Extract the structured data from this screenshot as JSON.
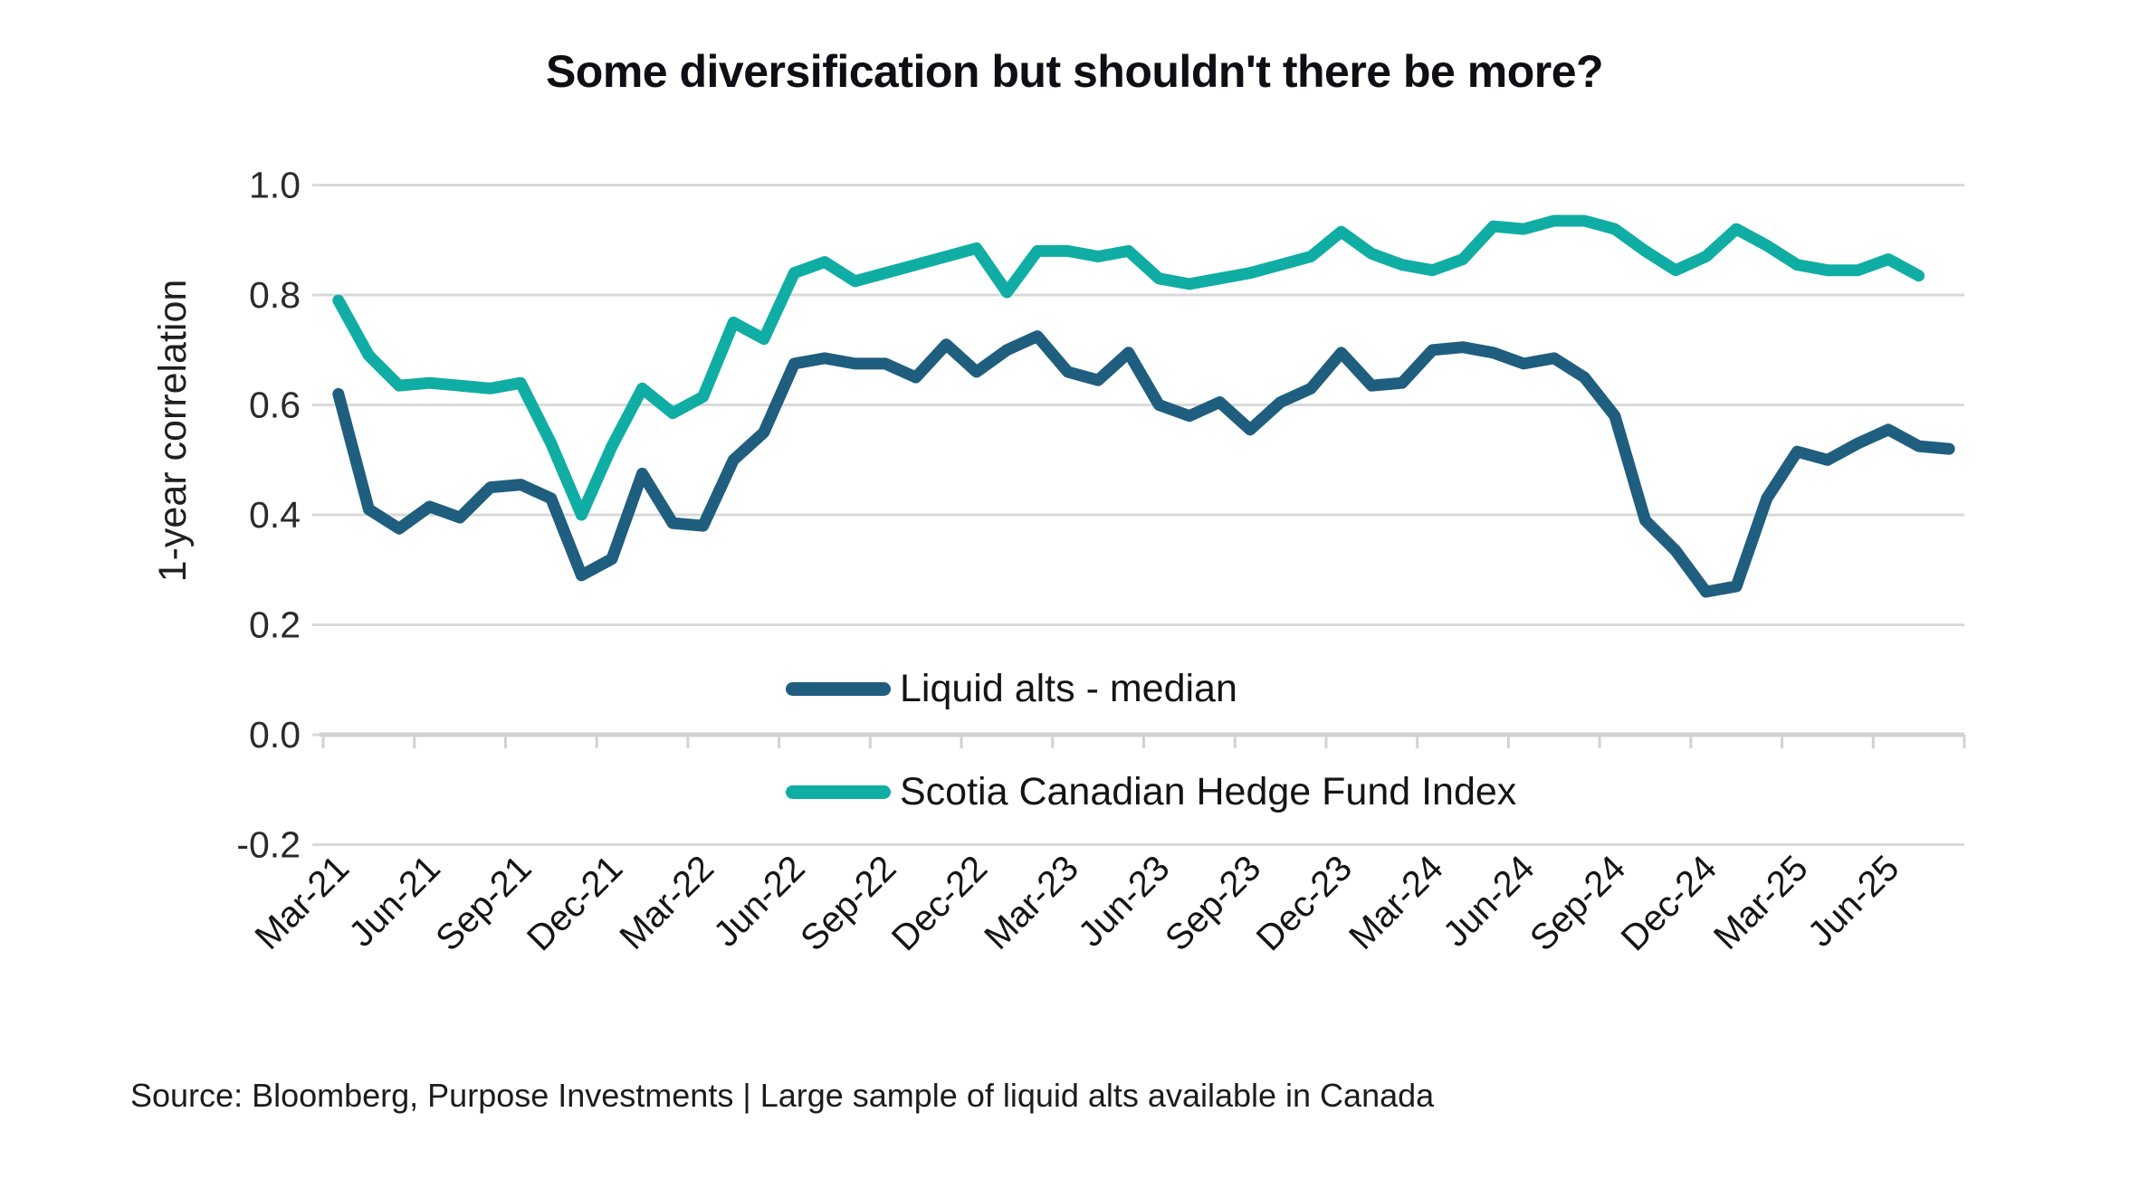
{
  "title": "Some diversification but shouldn't there be more?",
  "source": "Source: Bloomberg, Purpose Investments | Large sample of liquid alts available in Canada",
  "colors": {
    "liquid_alts_line": "#1f5e7e",
    "scotia_line": "#10ada4",
    "gridline": "#d9d9d9",
    "axis_line": "#d2d2d2",
    "title_text": "#0e0e14",
    "tick_text": "#2b2b2b"
  },
  "chart_data": {
    "type": "line",
    "title": "Some diversification but shouldn't there be more?",
    "xlabel": "",
    "ylabel": "1-year correlation",
    "ylim": [
      -0.2,
      1.0
    ],
    "grid": true,
    "legend_position": "inside-bottom-center",
    "x": [
      "Mar-21",
      "Apr-21",
      "May-21",
      "Jun-21",
      "Jul-21",
      "Aug-21",
      "Sep-21",
      "Oct-21",
      "Nov-21",
      "Dec-21",
      "Jan-22",
      "Feb-22",
      "Mar-22",
      "Apr-22",
      "May-22",
      "Jun-22",
      "Jul-22",
      "Aug-22",
      "Sep-22",
      "Oct-22",
      "Nov-22",
      "Dec-22",
      "Jan-23",
      "Feb-23",
      "Mar-23",
      "Apr-23",
      "May-23",
      "Jun-23",
      "Jul-23",
      "Aug-23",
      "Sep-23",
      "Oct-23",
      "Nov-23",
      "Dec-23",
      "Jan-24",
      "Feb-24",
      "Mar-24",
      "Apr-24",
      "May-24",
      "Jun-24",
      "Jul-24",
      "Aug-24",
      "Sep-24",
      "Oct-24",
      "Nov-24",
      "Dec-24",
      "Jan-25",
      "Feb-25",
      "Mar-25",
      "Apr-25",
      "May-25",
      "Jun-25",
      "Jul-25",
      "Aug-25"
    ],
    "x_tick_labels": [
      "Mar-21",
      "Jun-21",
      "Sep-21",
      "Dec-21",
      "Mar-22",
      "Jun-22",
      "Sep-22",
      "Dec-22",
      "Mar-23",
      "Jun-23",
      "Sep-23",
      "Dec-23",
      "Mar-24",
      "Jun-24",
      "Sep-24",
      "Dec-24",
      "Mar-25",
      "Jun-25"
    ],
    "yticks": [
      {
        "label": "1.0",
        "value": 1.0
      },
      {
        "label": "0.8",
        "value": 0.8
      },
      {
        "label": "0.6",
        "value": 0.6
      },
      {
        "label": "0.4",
        "value": 0.4
      },
      {
        "label": "0.2",
        "value": 0.2
      },
      {
        "label": "0.0",
        "value": 0.0
      },
      {
        "label": "-0.2",
        "value": -0.2
      }
    ],
    "series": [
      {
        "name": "Liquid alts - median",
        "color": "#1f5e7e",
        "values": [
          0.62,
          0.41,
          0.375,
          0.415,
          0.395,
          0.45,
          0.455,
          0.43,
          0.29,
          0.32,
          0.475,
          0.385,
          0.38,
          0.5,
          0.55,
          0.675,
          0.685,
          0.675,
          0.675,
          0.65,
          0.71,
          0.66,
          0.7,
          0.725,
          0.66,
          0.645,
          0.695,
          0.6,
          0.58,
          0.605,
          0.555,
          0.605,
          0.63,
          0.695,
          0.635,
          0.64,
          0.7,
          0.705,
          0.695,
          0.675,
          0.685,
          0.65,
          0.58,
          0.39,
          0.335,
          0.26,
          0.27,
          0.43,
          0.515,
          0.5,
          0.53,
          0.555,
          0.525,
          0.52
        ]
      },
      {
        "name": "Scotia Canadian Hedge Fund Index",
        "color": "#10ada4",
        "values": [
          0.79,
          0.69,
          0.635,
          0.64,
          0.635,
          0.63,
          0.64,
          0.53,
          0.4,
          0.525,
          0.63,
          0.585,
          0.615,
          0.75,
          0.72,
          0.84,
          0.86,
          0.825,
          0.84,
          0.855,
          0.87,
          0.885,
          0.805,
          0.88,
          0.88,
          0.87,
          0.88,
          0.83,
          0.82,
          0.83,
          0.84,
          0.855,
          0.87,
          0.915,
          0.875,
          0.855,
          0.845,
          0.865,
          0.925,
          0.92,
          0.935,
          0.935,
          0.92,
          0.88,
          0.845,
          0.87,
          0.92,
          0.89,
          0.855,
          0.845,
          0.845,
          0.865,
          0.835,
          null
        ]
      }
    ]
  }
}
